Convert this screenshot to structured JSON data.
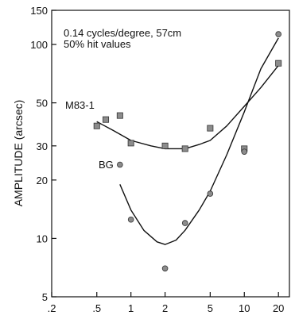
{
  "chart_data": {
    "type": "scatter",
    "title": "",
    "annotation_lines": [
      "0.14 cycles/degree,  57cm",
      "50% hit values"
    ],
    "xlabel": "",
    "ylabel": "AMPLITUDE (arcsec)",
    "x_scale": "log",
    "y_scale": "log",
    "xlim": [
      0.2,
      25
    ],
    "ylim": [
      5,
      150
    ],
    "x_ticks": [
      0.2,
      0.5,
      1,
      2,
      5,
      10,
      20
    ],
    "x_tick_labels": [
      ".2",
      ".5",
      "1",
      "2",
      "5",
      "10",
      "20"
    ],
    "y_ticks": [
      5,
      10,
      20,
      30,
      50,
      100,
      150
    ],
    "y_tick_labels": [
      "5",
      "10",
      "20",
      "30",
      "50",
      "100",
      "150"
    ],
    "grid": false,
    "series": [
      {
        "name": "M83-1",
        "marker": "square",
        "x": [
          0.5,
          0.6,
          0.8,
          1,
          2,
          3,
          5,
          10,
          20
        ],
        "y": [
          38,
          41,
          43,
          31,
          30,
          29,
          37,
          29,
          80
        ],
        "fit_curve": {
          "x": [
            0.5,
            0.7,
            1,
            1.5,
            2,
            3,
            4,
            5,
            7,
            10,
            14,
            20
          ],
          "y": [
            40,
            36,
            32,
            30,
            29,
            29,
            30.5,
            32,
            38,
            48,
            60,
            78
          ]
        }
      },
      {
        "name": "BG",
        "marker": "circle",
        "x": [
          0.8,
          1,
          2,
          3,
          5,
          10,
          20
        ],
        "y": [
          24,
          12.5,
          7,
          12,
          17,
          28,
          113
        ],
        "fit_curve": {
          "x": [
            0.8,
            1,
            1.3,
            1.7,
            2,
            2.5,
            3,
            4,
            5,
            7,
            10,
            14,
            20
          ],
          "y": [
            19,
            14,
            11,
            9.6,
            9.3,
            9.8,
            11,
            14,
            17.5,
            27,
            45,
            75,
            108
          ]
        }
      }
    ]
  }
}
